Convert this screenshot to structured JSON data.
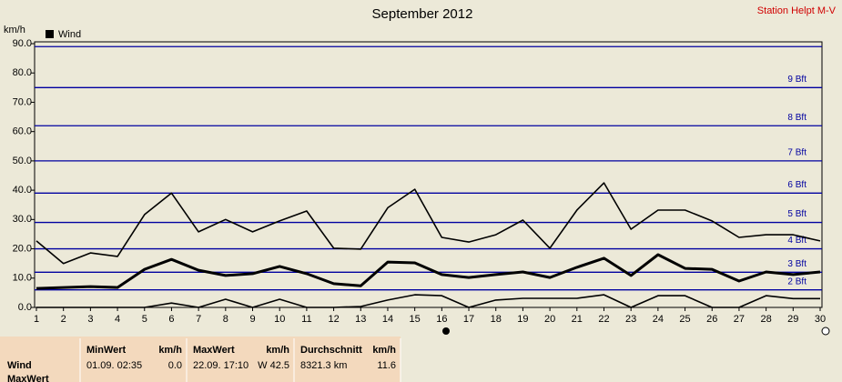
{
  "chart_data": {
    "type": "line",
    "title": "September 2012",
    "subtitle": "Station Helpt M-V",
    "y_label": "km/h",
    "x": [
      1,
      2,
      3,
      4,
      5,
      6,
      7,
      8,
      9,
      10,
      11,
      12,
      13,
      14,
      15,
      16,
      17,
      18,
      19,
      20,
      21,
      22,
      23,
      24,
      25,
      26,
      27,
      28,
      29,
      30
    ],
    "xlim": [
      1,
      30
    ],
    "xticks": [
      1,
      2,
      3,
      4,
      5,
      6,
      7,
      8,
      9,
      10,
      11,
      12,
      13,
      14,
      15,
      16,
      17,
      18,
      19,
      20,
      21,
      22,
      23,
      24,
      25,
      26,
      27,
      28,
      29,
      30
    ],
    "ylim": [
      0,
      90
    ],
    "yticks": [
      {
        "value": 0,
        "label": "0.0"
      },
      {
        "value": 10,
        "label": "10.0"
      },
      {
        "value": 20,
        "label": "20.0"
      },
      {
        "value": 30,
        "label": "30.0"
      },
      {
        "value": 40,
        "label": "40.0"
      },
      {
        "value": 50,
        "label": "50.0"
      },
      {
        "value": 60,
        "label": "60.0"
      },
      {
        "value": 70,
        "label": "70.0"
      },
      {
        "value": 80,
        "label": "80.0"
      },
      {
        "value": 90,
        "label": "90.0"
      }
    ],
    "grid": false,
    "reference_lines": {
      "color": "#0000a0",
      "lines": [
        {
          "value": 6,
          "label": "2 Bft"
        },
        {
          "value": 12,
          "label": "3 Bft"
        },
        {
          "value": 20,
          "label": "4 Bft"
        },
        {
          "value": 29,
          "label": "5 Bft"
        },
        {
          "value": 39,
          "label": "6 Bft"
        },
        {
          "value": 50,
          "label": "7 Bft"
        },
        {
          "value": 62,
          "label": "8 Bft"
        },
        {
          "value": 75,
          "label": "9 Bft"
        },
        89
      ]
    },
    "series": [
      {
        "name": "Wind",
        "color": "#000000",
        "values": [
          6.5,
          6.8,
          7.1,
          6.8,
          13,
          16.4,
          12.7,
          10.9,
          11.5,
          14,
          11.5,
          8.1,
          7.4,
          15.5,
          15.2,
          11.2,
          10.2,
          11.2,
          12.1,
          10.2,
          13.7,
          16.8,
          10.9,
          18,
          13.3,
          13,
          9,
          12.1,
          11.2,
          12.1
        ]
      },
      {
        "color": "#000000",
        "values": [
          22.7,
          15,
          18.6,
          17.4,
          31.7,
          39,
          25.8,
          30,
          25.8,
          29.5,
          32.9,
          20.2,
          19.9,
          34,
          40.3,
          23.9,
          22.3,
          24.8,
          29.8,
          20.2,
          33.2,
          42.5,
          26.7,
          33.2,
          33.2,
          29.5,
          23.9,
          24.8,
          24.8,
          22.7
        ]
      },
      {
        "color": "#000000",
        "values": [
          0,
          0,
          0,
          0,
          0,
          1.5,
          0,
          2.8,
          0,
          2.8,
          0,
          0,
          0.3,
          2.5,
          4.3,
          4,
          0,
          2.5,
          3.1,
          3.1,
          3.1,
          4.3,
          0,
          4,
          4,
          0,
          0,
          4,
          3,
          3
        ]
      }
    ]
  },
  "summary": {
    "row_labels": [
      "Wind",
      "MaxWert"
    ],
    "columns": [
      {
        "title": "MinWert",
        "unit": "km/h",
        "cells": [
          "01.09.  02:35",
          "0.0"
        ]
      },
      {
        "title": "MaxWert",
        "unit": "km/h",
        "cells": [
          "22.09.  17:10",
          "W 42.5"
        ]
      },
      {
        "title": "Durchschnitt",
        "unit": "km/h",
        "cells": [
          "8321.3 km",
          "11.6"
        ]
      }
    ]
  }
}
